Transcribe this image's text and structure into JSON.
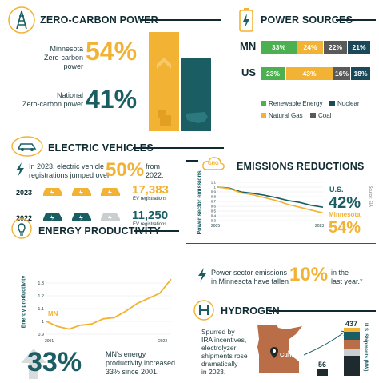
{
  "zero_carbon": {
    "title": "ZERO-CARBON POWER",
    "mn_label_1": "Minnesota",
    "mn_label_2": "Zero-carbon power",
    "mn_value": "54%",
    "us_label_1": "National",
    "us_label_2": "Zero-carbon power",
    "us_value": "41%",
    "mn_fraction": 0.54,
    "us_fraction": 0.41
  },
  "power_sources": {
    "title": "POWER SOURCES",
    "rows": [
      {
        "label": "MN",
        "segments": [
          {
            "name": "Renewable Energy",
            "value": "33%",
            "pct": 33
          },
          {
            "name": "Natural Gas",
            "value": "24%",
            "pct": 24
          },
          {
            "name": "Coal",
            "value": "22%",
            "pct": 22
          },
          {
            "name": "Nuclear",
            "value": "21%",
            "pct": 21
          }
        ]
      },
      {
        "label": "US",
        "segments": [
          {
            "name": "Renewable Energy",
            "value": "23%",
            "pct": 23
          },
          {
            "name": "Natural Gas",
            "value": "43%",
            "pct": 43
          },
          {
            "name": "Coal",
            "value": "16%",
            "pct": 16
          },
          {
            "name": "Nuclear",
            "value": "18%",
            "pct": 18
          }
        ]
      }
    ],
    "legend": {
      "renewable": "Renewable Energy",
      "nuclear": "Nuclear",
      "gas": "Natural Gas",
      "coal": "Coal"
    },
    "colors": {
      "renewable": "#4caf50",
      "gas": "#f2b234",
      "coal": "#5a5a5a",
      "nuclear": "#1a4a5a"
    }
  },
  "ev": {
    "title": "ELECTRIC VEHICLES",
    "text_1": "In 2023, electric vehicle",
    "text_2": "registrations jumped over",
    "pct": "50%",
    "from_1": "from",
    "from_2": "2022.",
    "y2023": "2023",
    "count_2023": "17,383",
    "unit_2023": "EV registrations",
    "y2022": "2022",
    "count_2022": "11,250",
    "unit_2022": "EV registrations"
  },
  "emissions": {
    "title": "EMISSIONS REDUCTIONS",
    "ghg": "GHG",
    "ylabel": "Power sector emissions",
    "x_start": "2005",
    "x_end": "2023",
    "us_label": "U.S.",
    "us_value": "42%",
    "mn_label": "Minnesota",
    "mn_value": "54%",
    "source": "Source: EIA",
    "ticks": [
      "1.1",
      "1",
      "0.9",
      "0.8",
      "0.7",
      "0.6",
      "0.5",
      "0.4",
      "0.3"
    ],
    "statement_1": "Power sector emissions",
    "statement_2": "in Minnesota have fallen",
    "statement_pct": "10%",
    "statement_3": "in the",
    "statement_4": "last year.*"
  },
  "chart_data": {
    "type": "line",
    "x": [
      2005,
      2007,
      2009,
      2011,
      2013,
      2015,
      2017,
      2019,
      2021,
      2023
    ],
    "series": [
      {
        "name": "U.S.",
        "values": [
          1.0,
          0.98,
          0.9,
          0.87,
          0.83,
          0.78,
          0.72,
          0.68,
          0.62,
          0.58
        ]
      },
      {
        "name": "Minnesota",
        "values": [
          1.0,
          0.97,
          0.88,
          0.84,
          0.78,
          0.72,
          0.64,
          0.58,
          0.52,
          0.46
        ]
      }
    ],
    "ylim": [
      0.3,
      1.1
    ],
    "ylabel": "Power sector emissions"
  },
  "productivity": {
    "title": "ENERGY PRODUCTIVITY",
    "ylabel": "Energy productivity",
    "ticks": [
      "1.3",
      "1.2",
      "1.1",
      "1",
      "0.9"
    ],
    "x_start": "2001",
    "x_end": "2023",
    "mn_tag": "MN",
    "big": "33%",
    "text_1": "MN's energy",
    "text_2": "productivity increased",
    "text_3": "33% since 2001."
  },
  "productivity_chart": {
    "x": [
      2001,
      2003,
      2005,
      2007,
      2009,
      2011,
      2013,
      2015,
      2017,
      2019,
      2021,
      2023
    ],
    "values": [
      1.0,
      0.96,
      0.94,
      0.97,
      0.98,
      1.02,
      1.03,
      1.08,
      1.14,
      1.18,
      1.22,
      1.33
    ],
    "ylim": [
      0.9,
      1.35
    ]
  },
  "hydrogen": {
    "title": "HYDROGEN",
    "text_1": "Spurred by",
    "text_2": "IRA incentives,",
    "text_3": "electrolyzer",
    "text_4": "shipments rose",
    "text_5": "dramatically",
    "text_6": "in 2023.",
    "city": "Cummins",
    "val_high": "437",
    "val_low": "56",
    "axis": "U.S. Shipments (MW)"
  }
}
